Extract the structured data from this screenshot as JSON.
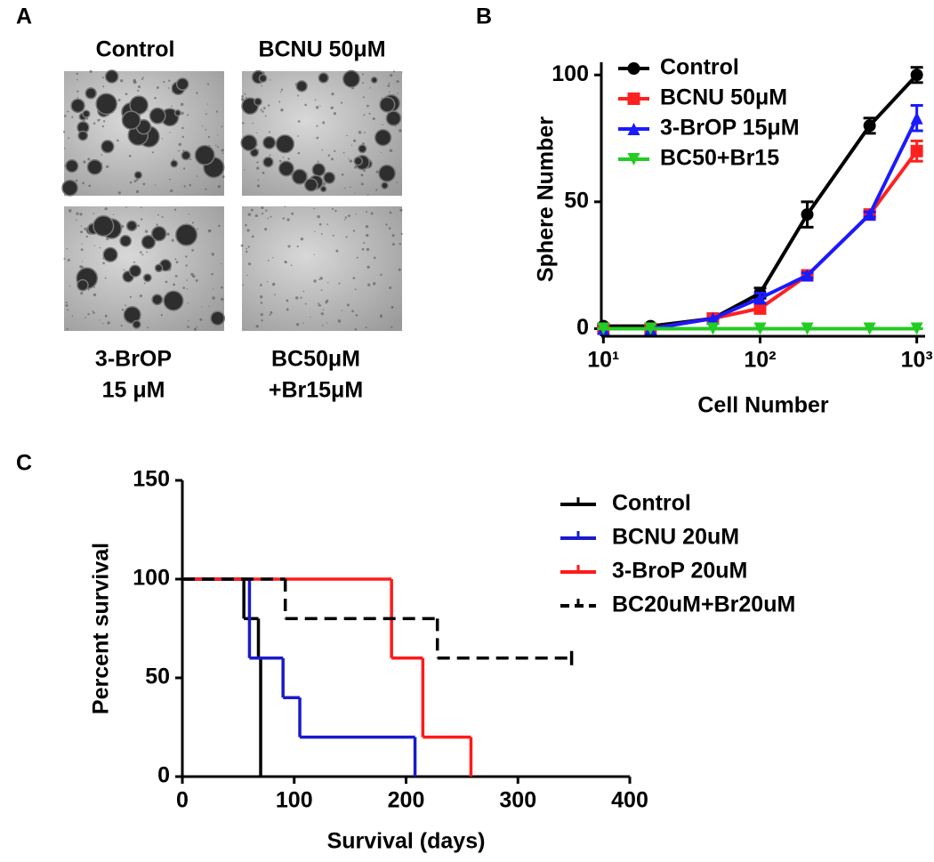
{
  "panel_labels": [
    "A",
    "B",
    "C"
  ],
  "images": {
    "top_labels": [
      "Control",
      "BCNU 50μM"
    ],
    "bottom_labels": [
      [
        "3-BrOP",
        "15 μM"
      ],
      [
        "BC50μM",
        "+Br15μM"
      ]
    ]
  },
  "chart_data": [
    {
      "type": "line",
      "log_x": true,
      "xlabel": "Cell Number",
      "ylabel": "Sphere  Number",
      "x": [
        10,
        20,
        50,
        100,
        200,
        500,
        1000
      ],
      "xlim": [
        9.7,
        1130
      ],
      "xticks": [
        {
          "value": 10,
          "label": "10¹"
        },
        {
          "value": 100,
          "label": "10²"
        },
        {
          "value": 1000,
          "label": "10³"
        }
      ],
      "ylim": [
        -3,
        105
      ],
      "yticks": [
        0,
        50,
        100
      ],
      "series": [
        {
          "name": "Control",
          "color": "#000000",
          "marker": "circle",
          "values": [
            1,
            1,
            4,
            14,
            45,
            80,
            100
          ],
          "errors": [
            0,
            0,
            0,
            2,
            5,
            3,
            3
          ]
        },
        {
          "name": "BCNU 50μM",
          "color": "#ff2020",
          "marker": "square",
          "values": [
            0,
            0,
            4,
            8,
            21,
            45,
            70
          ],
          "errors": [
            0,
            0,
            0,
            2,
            1,
            1,
            4
          ]
        },
        {
          "name": "3-BrOP 15μM",
          "color": "#1a1aff",
          "marker": "triangle-up",
          "values": [
            0,
            0,
            4,
            12,
            21,
            45,
            83
          ],
          "errors": [
            0,
            0,
            0,
            2,
            1,
            1,
            5
          ]
        },
        {
          "name": "BC50+Br15",
          "color": "#22cc22",
          "marker": "triangle-down",
          "values": [
            0,
            0,
            0,
            0,
            0,
            0,
            0
          ],
          "errors": [
            0,
            0,
            0,
            0,
            0,
            0,
            0
          ]
        }
      ]
    },
    {
      "type": "step",
      "xlabel": "Survival (days)",
      "ylabel": "Percent survival",
      "xlim": [
        0,
        400
      ],
      "xticks": [
        0,
        100,
        200,
        300,
        400
      ],
      "ylim": [
        0,
        150
      ],
      "yticks": [
        0,
        50,
        100,
        150
      ],
      "series": [
        {
          "name": "Control",
          "color": "#000000",
          "dashed": false,
          "x": [
            0,
            55,
            68,
            70
          ],
          "values": [
            100,
            80,
            60,
            0
          ]
        },
        {
          "name": "BCNU 20uM",
          "color": "#1a1acc",
          "dashed": false,
          "x": [
            0,
            60,
            90,
            105,
            208
          ],
          "values": [
            100,
            60,
            40,
            20,
            0
          ]
        },
        {
          "name": "3-BroP 20uM",
          "color": "#ff1a1a",
          "dashed": false,
          "x": [
            0,
            187,
            215,
            258
          ],
          "values": [
            100,
            60,
            20,
            0
          ]
        },
        {
          "name": "BC20uM+Br20uM",
          "color": "#000000",
          "dashed": true,
          "x": [
            0,
            92,
            228,
            348
          ],
          "values": [
            100,
            80,
            60,
            60
          ]
        }
      ]
    }
  ]
}
